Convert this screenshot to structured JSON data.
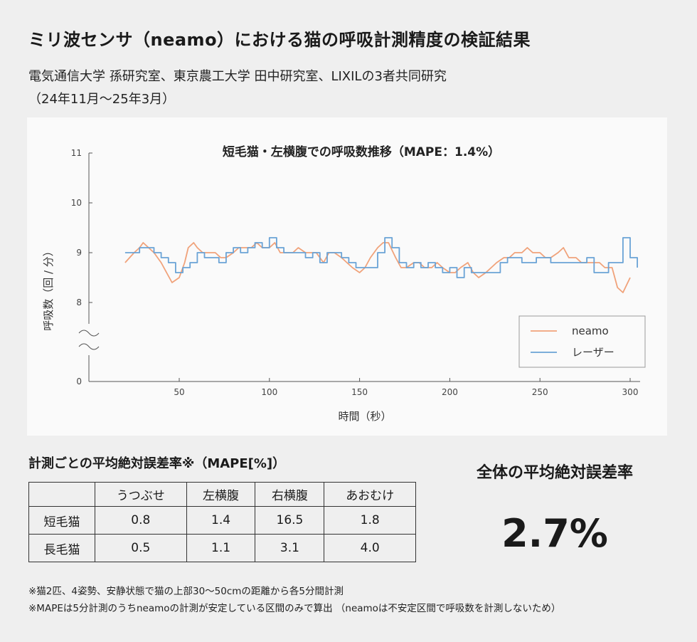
{
  "header": {
    "title": "ミリ波センサ（neamo）における猫の呼吸計測精度の検証結果",
    "subtitle_line1": "電気通信大学 孫研究室、東京農工大学 田中研究室、LIXILの3者共同研究",
    "subtitle_line2": "（24年11月〜25年3月）"
  },
  "chart_data": {
    "type": "line",
    "title": "短毛猫・左横腹での呼吸数推移（MAPE：1.4%）",
    "xlabel": "時間（秒）",
    "ylabel": "呼吸数（回 / 分）",
    "xlim": [
      0,
      305
    ],
    "ylim": [
      0,
      11
    ],
    "axis_break": [
      0,
      7.5
    ],
    "xticks": [
      50,
      100,
      150,
      200,
      250,
      300
    ],
    "yticks": [
      0,
      8,
      9,
      10,
      11
    ],
    "legend_position": "bottom-right",
    "series": [
      {
        "name": "neamo",
        "color": "#f0a27a",
        "step": false,
        "x": [
          20,
          25,
          28,
          30,
          33,
          36,
          40,
          43,
          46,
          50,
          53,
          55,
          58,
          60,
          63,
          66,
          70,
          73,
          76,
          80,
          83,
          86,
          90,
          93,
          96,
          100,
          103,
          106,
          110,
          113,
          116,
          120,
          123,
          126,
          130,
          133,
          136,
          140,
          143,
          146,
          150,
          153,
          156,
          160,
          163,
          166,
          170,
          173,
          176,
          180,
          183,
          186,
          190,
          193,
          196,
          200,
          203,
          206,
          210,
          213,
          216,
          220,
          223,
          226,
          230,
          233,
          236,
          240,
          243,
          246,
          250,
          253,
          256,
          260,
          263,
          266,
          270,
          273,
          276,
          280,
          283,
          286,
          290,
          293,
          296,
          300
        ],
        "y": [
          8.8,
          9.0,
          9.1,
          9.2,
          9.1,
          9.0,
          8.8,
          8.6,
          8.4,
          8.5,
          8.8,
          9.1,
          9.2,
          9.1,
          9.0,
          9.0,
          9.0,
          8.9,
          8.9,
          9.0,
          9.1,
          9.1,
          9.1,
          9.2,
          9.1,
          9.1,
          9.2,
          9.0,
          9.0,
          9.0,
          9.1,
          9.0,
          9.0,
          9.0,
          8.8,
          9.0,
          9.0,
          8.9,
          8.8,
          8.7,
          8.6,
          8.7,
          8.9,
          9.1,
          9.2,
          9.2,
          8.9,
          8.7,
          8.7,
          8.8,
          8.8,
          8.7,
          8.7,
          8.8,
          8.7,
          8.6,
          8.6,
          8.7,
          8.8,
          8.6,
          8.5,
          8.6,
          8.7,
          8.8,
          8.9,
          8.9,
          9.0,
          9.0,
          9.1,
          9.0,
          9.0,
          8.9,
          8.9,
          9.0,
          9.1,
          8.9,
          8.9,
          8.8,
          8.8,
          8.8,
          8.8,
          8.7,
          8.7,
          8.3,
          8.2,
          8.5
        ]
      },
      {
        "name": "レーザー",
        "color": "#6aa3d6",
        "step": true,
        "x": [
          20,
          24,
          28,
          32,
          36,
          40,
          44,
          48,
          52,
          56,
          60,
          64,
          68,
          72,
          76,
          80,
          84,
          88,
          92,
          96,
          100,
          104,
          108,
          112,
          116,
          120,
          124,
          128,
          132,
          136,
          140,
          144,
          148,
          152,
          156,
          160,
          164,
          168,
          172,
          176,
          180,
          184,
          188,
          192,
          196,
          200,
          204,
          208,
          212,
          216,
          220,
          224,
          228,
          232,
          236,
          240,
          244,
          248,
          252,
          256,
          260,
          264,
          268,
          272,
          276,
          280,
          284,
          288,
          292,
          296,
          300,
          304
        ],
        "y": [
          9.0,
          9.0,
          9.1,
          9.1,
          9.0,
          8.9,
          8.8,
          8.6,
          8.7,
          8.8,
          9.0,
          8.9,
          8.9,
          8.8,
          9.0,
          9.1,
          9.0,
          9.1,
          9.2,
          9.1,
          9.3,
          9.1,
          9.0,
          9.0,
          9.0,
          8.9,
          9.0,
          8.8,
          9.0,
          9.0,
          8.9,
          8.8,
          8.7,
          8.7,
          8.7,
          9.0,
          9.3,
          9.1,
          8.8,
          8.7,
          8.8,
          8.7,
          8.8,
          8.7,
          8.6,
          8.7,
          8.5,
          8.7,
          8.6,
          8.6,
          8.6,
          8.6,
          8.8,
          8.9,
          8.9,
          8.8,
          8.8,
          8.9,
          8.9,
          8.8,
          8.8,
          8.8,
          8.8,
          8.8,
          8.9,
          8.6,
          8.6,
          8.8,
          8.8,
          9.3,
          8.9,
          8.7
        ]
      }
    ]
  },
  "table": {
    "title": "計測ごとの平均絶対誤差率※（MAPE[%]）",
    "columns": [
      "",
      "うつぶせ",
      "左横腹",
      "右横腹",
      "あおむけ"
    ],
    "rows": [
      {
        "label": "短毛猫",
        "values": [
          "0.8",
          "1.4",
          "16.5",
          "1.8"
        ]
      },
      {
        "label": "長毛猫",
        "values": [
          "0.5",
          "1.1",
          "3.1",
          "4.0"
        ]
      }
    ]
  },
  "overall": {
    "label": "全体の平均絶対誤差率",
    "value": "2.7%"
  },
  "footnotes": {
    "note1": "※猫2匹、4姿勢、安静状態で猫の上部30〜50cmの距離から各5分間計測",
    "note2": "※MAPEは5分計測のうちneamoの計測が安定している区間のみで算出 （neamoは不安定区間で呼吸数を計測しないため）"
  }
}
